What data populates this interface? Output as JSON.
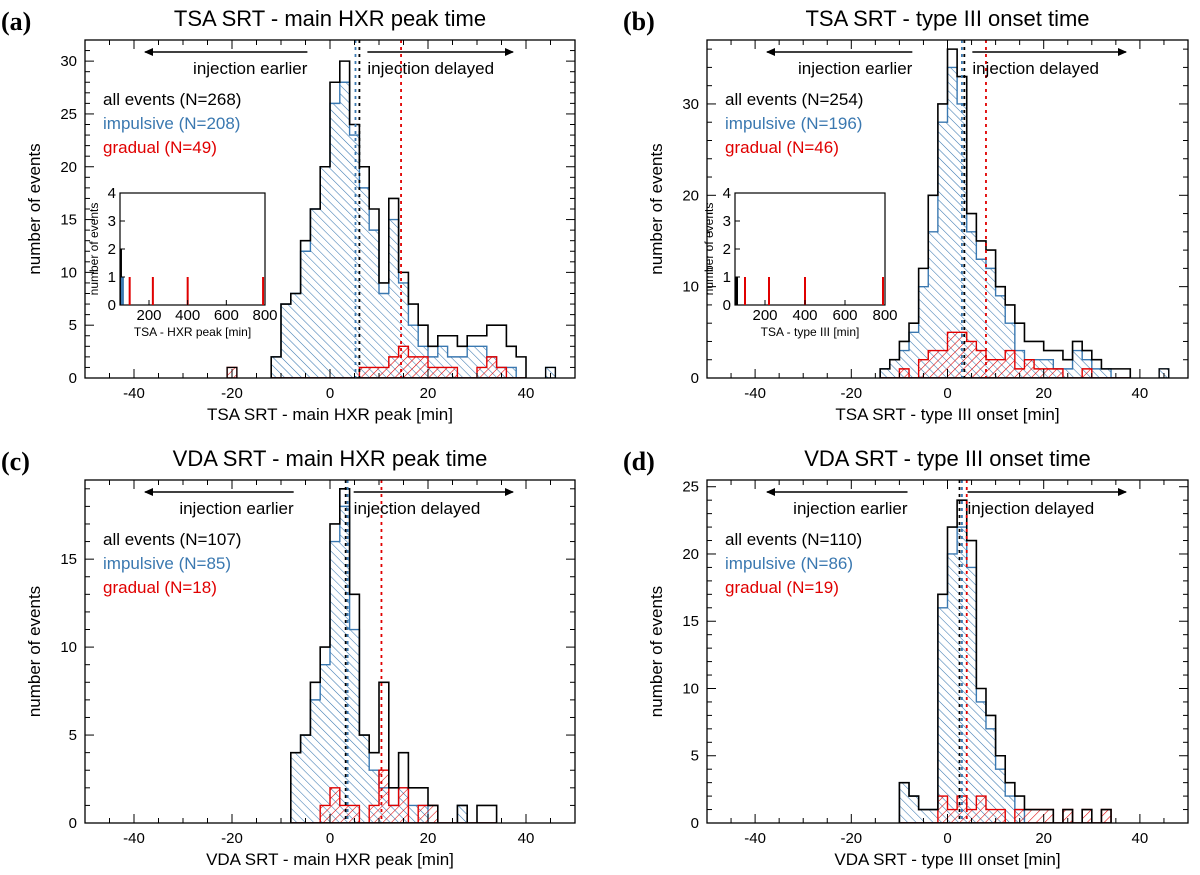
{
  "colors": {
    "all": "#000000",
    "impulsive": "#3a78b0",
    "gradual": "#e00000",
    "hatch_impulsive": "#3a78b0",
    "hatch_gradual": "#e00000"
  },
  "chart_data": [
    {
      "type": "histogram",
      "panel_label": "(a)",
      "title": "TSA SRT - main HXR peak time",
      "xlabel": "TSA SRT - main HXR peak  [min]",
      "ylabel": "number of events",
      "xlim": [
        -50,
        50
      ],
      "ylim": [
        0,
        32
      ],
      "xticks": [
        -40,
        -20,
        0,
        20,
        40
      ],
      "yticks": [
        0,
        5,
        10,
        15,
        20,
        25,
        30
      ],
      "bin_edges_start": -12,
      "bin_width": 2,
      "arrow_left": "injection earlier",
      "arrow_right": "injection delayed",
      "legend": [
        "all events (N=268)",
        "impulsive (N=208)",
        "gradual (N=49)"
      ],
      "series": [
        {
          "name": "all events",
          "values": [
            2,
            7,
            8,
            13,
            16,
            20,
            28,
            30,
            24,
            20,
            16,
            9,
            17,
            10,
            7,
            5,
            3,
            4,
            4,
            3,
            4,
            4,
            5,
            5,
            3,
            2
          ]
        },
        {
          "name": "impulsive",
          "values": [
            2,
            7,
            8,
            12,
            16,
            20,
            26,
            28,
            23,
            18,
            14,
            8,
            15,
            9,
            5,
            3,
            2,
            3,
            2,
            2,
            3,
            3,
            2,
            1,
            1,
            0
          ]
        },
        {
          "name": "gradual",
          "values": [
            0,
            0,
            0,
            0,
            0,
            0,
            0,
            0,
            0,
            1,
            1,
            1,
            2,
            3,
            2,
            2,
            1,
            1,
            1,
            0,
            0,
            1,
            2,
            1,
            0,
            0
          ]
        }
      ],
      "extra_bars": [
        {
          "x": -20,
          "value": 1,
          "series": "gradual"
        },
        {
          "x": 45,
          "value": 1,
          "series": "impulsive"
        }
      ],
      "medians": {
        "all": 6.0,
        "impulsive": 5.2,
        "gradual": 14.5
      },
      "inset": {
        "xlabel": "TSA - HXR peak [min]",
        "ylabel": "number of events",
        "xlim": [
          50,
          800
        ],
        "ylim": [
          0,
          4
        ],
        "xticks": [
          200,
          400,
          600,
          800
        ],
        "yticks": [
          0,
          1,
          2,
          3,
          4
        ],
        "bars": [
          {
            "x": 55,
            "value": 2,
            "series": "all"
          },
          {
            "x": 60,
            "value": 1,
            "series": "impulsive"
          },
          {
            "x": 65,
            "value": 1,
            "series": "impulsive"
          },
          {
            "x": 100,
            "value": 1,
            "series": "gradual"
          },
          {
            "x": 220,
            "value": 1,
            "series": "gradual"
          },
          {
            "x": 400,
            "value": 1,
            "series": "gradual"
          },
          {
            "x": 790,
            "value": 1,
            "series": "gradual"
          }
        ]
      }
    },
    {
      "type": "histogram",
      "panel_label": "(b)",
      "title": "TSA SRT - type III onset time",
      "xlabel": "TSA SRT - type III onset  [min]",
      "ylabel": "number of events",
      "xlim": [
        -50,
        50
      ],
      "ylim": [
        0,
        37
      ],
      "xticks": [
        -40,
        -20,
        0,
        20,
        40
      ],
      "yticks": [
        0,
        10,
        20,
        30
      ],
      "bin_edges_start": -14,
      "bin_width": 2,
      "arrow_left": "injection earlier",
      "arrow_right": "injection delayed",
      "legend": [
        "all events (N=254)",
        "impulsive (N=196)",
        "gradual (N=46)"
      ],
      "series": [
        {
          "name": "all events",
          "values": [
            1,
            2,
            4,
            6,
            12,
            20,
            30,
            36,
            33,
            18,
            15,
            14,
            10,
            8,
            6,
            4,
            4,
            3,
            3,
            2,
            4,
            3,
            2,
            1,
            1,
            1
          ]
        },
        {
          "name": "impulsive",
          "values": [
            1,
            2,
            3,
            5,
            10,
            16,
            28,
            34,
            30,
            16,
            13,
            12,
            9,
            6,
            3,
            2,
            2,
            2,
            1,
            1,
            3,
            2,
            1,
            1,
            0,
            0
          ]
        },
        {
          "name": "gradual",
          "values": [
            0,
            0,
            1,
            0,
            2,
            3,
            3,
            5,
            5,
            4,
            3,
            2,
            2,
            3,
            1,
            2,
            1,
            1,
            1,
            0,
            0,
            1,
            0,
            0,
            0,
            0
          ]
        }
      ],
      "extra_bars": [
        {
          "x": 45,
          "value": 1,
          "series": "impulsive"
        }
      ],
      "medians": {
        "all": 3.5,
        "impulsive": 3.0,
        "gradual": 8.0
      },
      "inset": {
        "xlabel": "TSA -  type III [min]",
        "ylabel": "number of events",
        "xlim": [
          50,
          800
        ],
        "ylim": [
          0,
          4
        ],
        "xticks": [
          200,
          400,
          600,
          800
        ],
        "yticks": [
          0,
          1,
          2,
          3,
          4
        ],
        "bars": [
          {
            "x": 55,
            "value": 1,
            "series": "all"
          },
          {
            "x": 60,
            "value": 1,
            "series": "all"
          },
          {
            "x": 100,
            "value": 1,
            "series": "gradual"
          },
          {
            "x": 220,
            "value": 1,
            "series": "gradual"
          },
          {
            "x": 400,
            "value": 1,
            "series": "gradual"
          },
          {
            "x": 790,
            "value": 1,
            "series": "gradual"
          }
        ]
      }
    },
    {
      "type": "histogram",
      "panel_label": "(c)",
      "title": "VDA SRT - main HXR peak time",
      "xlabel": "VDA SRT - main HXR peak  [min]",
      "ylabel": "number of events",
      "xlim": [
        -50,
        50
      ],
      "ylim": [
        0,
        19.5
      ],
      "xticks": [
        -40,
        -20,
        0,
        20,
        40
      ],
      "yticks": [
        0,
        5,
        10,
        15
      ],
      "bin_edges_start": -8,
      "bin_width": 2,
      "arrow_left": "injection earlier",
      "arrow_right": "injection delayed",
      "legend": [
        "all events (N=107)",
        "impulsive (N=85)",
        "gradual (N=18)"
      ],
      "series": [
        {
          "name": "all events",
          "values": [
            4,
            5,
            8,
            10,
            17,
            19,
            13,
            5,
            4,
            8,
            2,
            4,
            2,
            2,
            1,
            0,
            0,
            1,
            0,
            1,
            1
          ]
        },
        {
          "name": "impulsive",
          "values": [
            4,
            5,
            7,
            9,
            16,
            18,
            11,
            5,
            3,
            2,
            1,
            2,
            1,
            1,
            0,
            0,
            0,
            1,
            0,
            0,
            0
          ]
        },
        {
          "name": "gradual",
          "values": [
            0,
            0,
            0,
            1,
            2,
            1,
            1,
            0,
            1,
            3,
            1,
            2,
            0,
            1,
            1,
            0,
            0,
            0,
            0,
            0,
            0
          ]
        }
      ],
      "extra_bars": [],
      "medians": {
        "all": 3.2,
        "impulsive": 3.6,
        "gradual": 10.5
      },
      "inset": null
    },
    {
      "type": "histogram",
      "panel_label": "(d)",
      "title": "VDA SRT - type III onset time",
      "xlabel": "VDA SRT - type III onset  [min]",
      "ylabel": "number of events",
      "xlim": [
        -50,
        50
      ],
      "ylim": [
        0,
        25.5
      ],
      "xticks": [
        -40,
        -20,
        0,
        20,
        40
      ],
      "yticks": [
        0,
        5,
        10,
        15,
        20,
        25
      ],
      "bin_edges_start": -10,
      "bin_width": 2,
      "arrow_left": "injection earlier",
      "arrow_right": "injection delayed",
      "legend": [
        "all events (N=110)",
        "impulsive (N=86)",
        "gradual (N=19)"
      ],
      "series": [
        {
          "name": "all events",
          "values": [
            3,
            2,
            1,
            1,
            17,
            22,
            24,
            21,
            10,
            8,
            5,
            3,
            2,
            1,
            1,
            1,
            0,
            1,
            0,
            1,
            0,
            1
          ]
        },
        {
          "name": "impulsive",
          "values": [
            3,
            2,
            1,
            1,
            16,
            20,
            22,
            19,
            9,
            7,
            4,
            2,
            1,
            0,
            0,
            0,
            0,
            0,
            0,
            0,
            0,
            0
          ]
        },
        {
          "name": "gradual",
          "values": [
            0,
            0,
            0,
            0,
            2,
            1,
            2,
            1,
            2,
            1,
            1,
            0,
            1,
            1,
            1,
            1,
            0,
            1,
            0,
            1,
            0,
            1
          ]
        }
      ],
      "extra_bars": [],
      "medians": {
        "all": 2.5,
        "impulsive": 3.0,
        "gradual": 4.0
      },
      "inset": null
    }
  ]
}
